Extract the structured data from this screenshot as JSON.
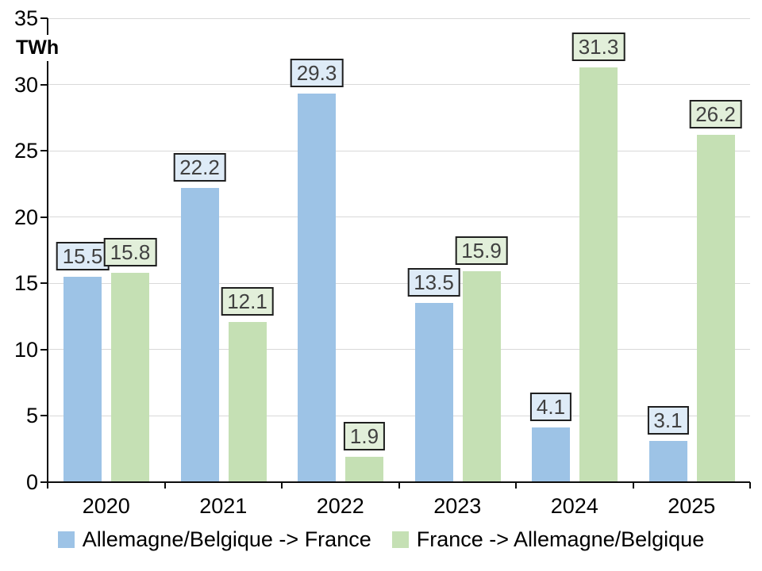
{
  "chart_data": {
    "type": "bar",
    "title": "",
    "ylabel": "TWh",
    "xlabel": "",
    "ylim": [
      0,
      35
    ],
    "ytick_step": 5,
    "yticks": [
      0,
      5,
      10,
      15,
      20,
      25,
      30,
      35
    ],
    "grid": true,
    "legend_position": "bottom",
    "categories": [
      "2020",
      "2021",
      "2022",
      "2023",
      "2024",
      "2025"
    ],
    "series": [
      {
        "name": "Allemagne/Belgique -> France",
        "color": "#9DC3E6",
        "label_fill": "#DEEBF7",
        "values": [
          15.5,
          22.2,
          29.3,
          13.5,
          4.1,
          3.1
        ]
      },
      {
        "name": "France -> Allemagne/Belgique",
        "color": "#C5E0B4",
        "label_fill": "#E2EFDA",
        "values": [
          15.8,
          12.1,
          1.9,
          15.9,
          31.3,
          26.2
        ]
      }
    ],
    "colors": {
      "gridline": "#D9D9D9",
      "axis": "#0D0D0D",
      "label_text": "#404040",
      "label_border": "#1F1F1F",
      "tick_text": "#000000"
    }
  }
}
